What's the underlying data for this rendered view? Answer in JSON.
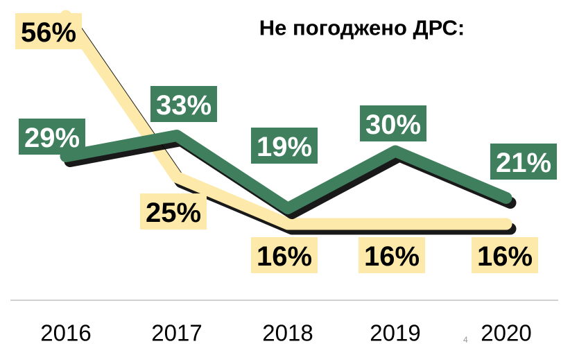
{
  "chart_data": {
    "type": "line",
    "title": "Не погоджено ДРС:",
    "categories": [
      "2016",
      "2017",
      "2018",
      "2019",
      "2020"
    ],
    "series": [
      {
        "color": "#3f7f5e",
        "label_color": "#ffffff",
        "values": [
          29,
          33,
          19,
          30,
          21
        ],
        "value_labels": [
          "29%",
          "33%",
          "19%",
          "30%",
          "21%"
        ]
      },
      {
        "color": "#fde9a9",
        "label_color": "#000000",
        "values": [
          56,
          25,
          16,
          16,
          16
        ],
        "value_labels": [
          "56%",
          "25%",
          "16%",
          "16%",
          "16%"
        ]
      }
    ]
  },
  "page_number": "4"
}
